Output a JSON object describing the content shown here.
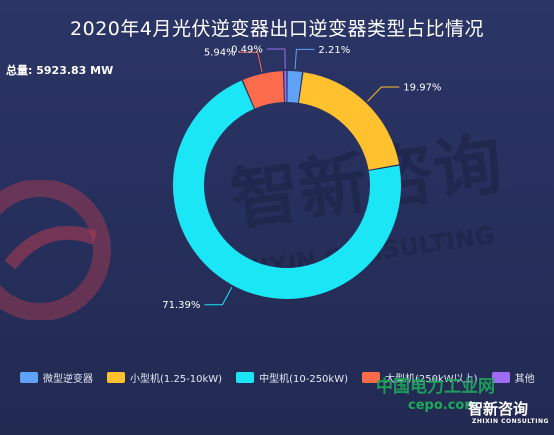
{
  "title": "2020年4月光伏逆变器出口逆变器类型占比情况",
  "total_label": "总量: 5923.83 MW",
  "colors": {
    "micro": "#5fa2f7",
    "small": "#ffc12e",
    "medium": "#1ae6f5",
    "large": "#fb6b4c",
    "other": "#9d6bf2"
  },
  "chart_data": {
    "type": "pie",
    "style": "donut",
    "title": "2020年4月光伏逆变器出口逆变器类型占比情况",
    "slices": [
      {
        "name": "微型逆变器",
        "value": 2.21,
        "label": "2.21%",
        "color": "#5fa2f7"
      },
      {
        "name": "小型机(1.25-10kW)",
        "value": 19.97,
        "label": "19.97%",
        "color": "#ffc12e"
      },
      {
        "name": "中型机(10-250kW)",
        "value": 71.39,
        "label": "71.39%",
        "color": "#1ae6f5"
      },
      {
        "name": "大型机(250kW以上)",
        "value": 5.94,
        "label": "5.94%",
        "color": "#fb6b4c"
      },
      {
        "name": "其他",
        "value": 0.49,
        "label": "0.49%",
        "color": "#9d6bf2"
      }
    ],
    "legend_position": "bottom"
  },
  "legend": [
    {
      "label": "微型逆变器",
      "color": "#5fa2f7"
    },
    {
      "label": "小型机(1.25-10kW)",
      "color": "#ffc12e"
    },
    {
      "label": "中型机(10-250kW)",
      "color": "#1ae6f5"
    },
    {
      "label": "大型机(250kW以上)",
      "color": "#fb6b4c"
    },
    {
      "label": "其他",
      "color": "#9d6bf2"
    }
  ],
  "watermark": {
    "main": "智新咨询",
    "sub": "ZHIXIN CONSULTING"
  },
  "brand": {
    "name": "中国电力工业网",
    "url": "cepo.com",
    "logo_text": "智新咨询",
    "logo_sub": "ZHIXIN CONSULTING"
  }
}
